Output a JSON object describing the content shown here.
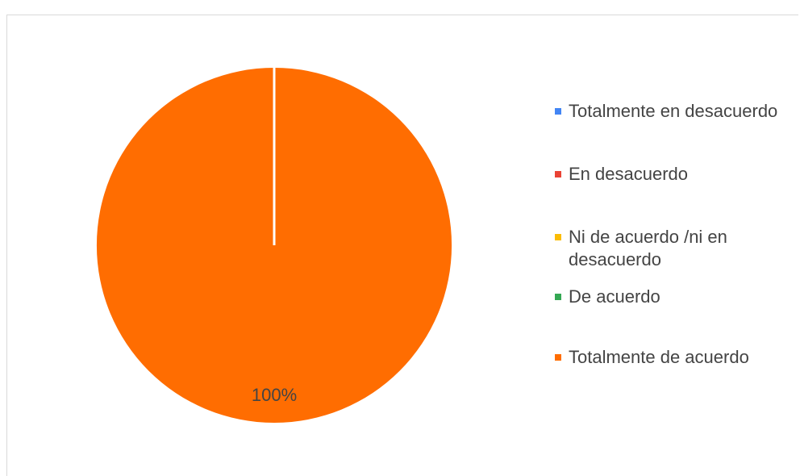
{
  "chart_data": {
    "type": "pie",
    "categories": [
      "Totalmente en desacuerdo",
      "En desacuerdo",
      "Ni de acuerdo /ni en desacuerdo",
      "De acuerdo",
      "Totalmente de acuerdo"
    ],
    "values": [
      0,
      0,
      0,
      0,
      100
    ],
    "value_labels": [
      null,
      null,
      null,
      null,
      "100%"
    ],
    "colors": [
      "#4285f4",
      "#ea4335",
      "#fbbc04",
      "#34a853",
      "#ff6d01"
    ],
    "legend": "right"
  }
}
